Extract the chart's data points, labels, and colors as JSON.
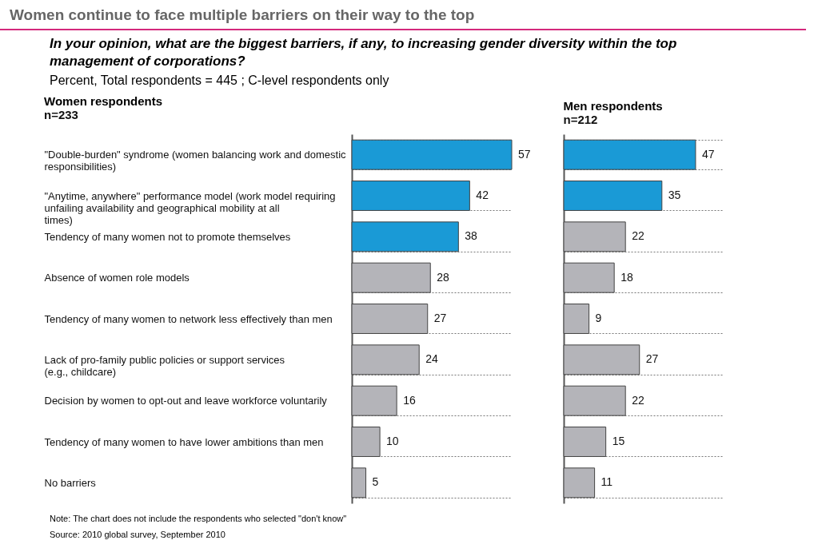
{
  "chart_data": [
    {
      "type": "bar",
      "orientation": "horizontal",
      "title": "Women respondents",
      "subtitle": "n=233",
      "categories": [
        "\"Double-burden\" syndrome (women balancing work and domestic responsibilities)",
        "\"Anytime, anywhere\" performance model (work model requiring unfailing availability and geographical mobility at all times)",
        "Tendency of many women not to promote themselves",
        "Absence of women role models",
        "Tendency of many women to network less effectively than men",
        "Lack of pro-family public policies or support services (e.g., childcare)",
        "Decision by women to opt-out and leave workforce voluntarily",
        "Tendency of many women to have lower ambitions than men",
        "No barriers"
      ],
      "values": [
        57,
        42,
        38,
        28,
        27,
        24,
        16,
        10,
        5
      ],
      "colors": [
        "#1a9ad6",
        "#1a9ad6",
        "#1a9ad6",
        "#b4b4b9",
        "#b4b4b9",
        "#b4b4b9",
        "#b4b4b9",
        "#b4b4b9",
        "#b4b4b9"
      ],
      "data_labels": true,
      "grid": "y",
      "tick_labels": "y",
      "annotations": [
        "Women continue to face multiple barriers on their way to the top",
        "In your opinion, what are the biggest barriers, if any, to increasing gender diversity within the top management of corporations?",
        "Percent, Total respondents = 445 ; C-level respondents only",
        "Note: The chart does not include the respondents who selected \"don't know\"",
        "Source: 2010 global survey, September 2010"
      ]
    },
    {
      "type": "bar",
      "orientation": "horizontal",
      "title": "Men respondents",
      "subtitle": "n=212",
      "categories": [
        null,
        null,
        null,
        null,
        null,
        null,
        null,
        null,
        null
      ],
      "values": [
        47,
        35,
        22,
        18,
        9,
        27,
        22,
        15,
        11
      ],
      "colors": [
        "#1a9ad6",
        "#1a9ad6",
        "#b4b4b9",
        "#b4b4b9",
        "#b4b4b9",
        "#b4b4b9",
        "#b4b4b9",
        "#b4b4b9",
        "#b4b4b9"
      ],
      "data_labels": true,
      "grid": "y",
      "tick_labels": false
    }
  ]
}
